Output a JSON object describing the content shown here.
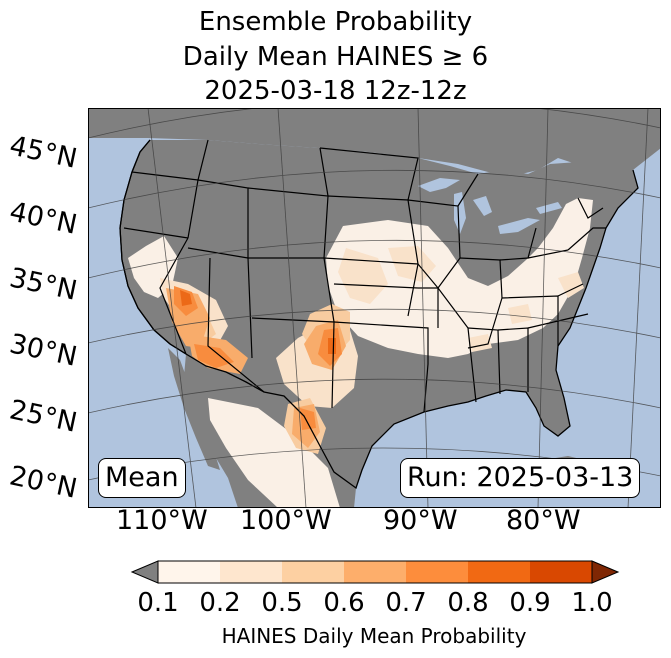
{
  "title": {
    "line1": "Ensemble Probability",
    "line2": "Daily Mean HAINES ≥ 6",
    "line3": "2025-03-18 12z-12z"
  },
  "map": {
    "latitude_labels": [
      "45°N",
      "40°N",
      "35°N",
      "30°N",
      "25°N",
      "20°N"
    ],
    "longitude_labels": [
      "110°W",
      "100°W",
      "90°W",
      "80°W"
    ],
    "stat_box": "Mean",
    "run_box": "Run: 2025-03-13",
    "colors": {
      "ocean": "#b0c4de",
      "land_below_threshold": "#808080",
      "grid": "#3c3c3c"
    }
  },
  "colorbar": {
    "label": "HAINES Daily Mean Probability",
    "ticks": [
      "0.1",
      "0.2",
      "0.5",
      "0.6",
      "0.7",
      "0.8",
      "0.9",
      "1.0"
    ],
    "under_color": "#808080",
    "over_color": "#7f2704",
    "bin_colors": [
      "#fff5eb",
      "#fee6ce",
      "#fdd0a2",
      "#fdae6b",
      "#fd8d3c",
      "#f16913",
      "#d94801"
    ]
  }
}
